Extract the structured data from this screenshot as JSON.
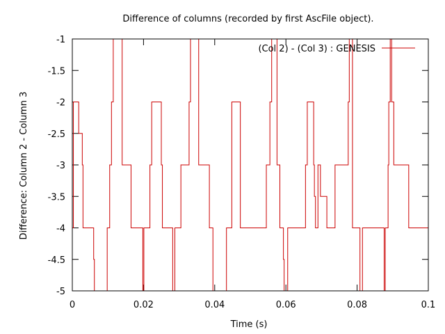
{
  "chart_data": {
    "type": "line",
    "title": "Difference of columns (recorded by first AscFile object).",
    "xlabel": "Time (s)",
    "ylabel": "Difference: Column 2 - Column 3",
    "xlim": [
      0,
      0.1
    ],
    "ylim": [
      -5,
      -1
    ],
    "x_ticks": [
      0,
      0.02,
      0.04,
      0.06,
      0.08,
      0.1
    ],
    "x_tick_labels": [
      "0",
      "0.02",
      "0.04",
      "0.06",
      "0.08",
      "0.1"
    ],
    "y_ticks": [
      -5,
      -4.5,
      -4,
      -3.5,
      -3,
      -2.5,
      -2,
      -1.5,
      -1
    ],
    "y_tick_labels": [
      "-5",
      "-4.5",
      "-4",
      "-3.5",
      "-3",
      "-2.5",
      "-2",
      "-1.5",
      "-1"
    ],
    "grid": false,
    "legend_position": "top-right",
    "series": [
      {
        "name": "(Col 2) - (Col 3) : GENESIS",
        "color": "#cc0000",
        "step": true,
        "x": [
          0,
          0.0003,
          0.0006,
          0.0018,
          0.0028,
          0.003,
          0.0035,
          0.006,
          0.0062,
          0.0065,
          0.0098,
          0.01,
          0.0102,
          0.0105,
          0.0107,
          0.011,
          0.0115,
          0.012,
          0.014,
          0.0142,
          0.0148,
          0.0165,
          0.017,
          0.0198,
          0.0201,
          0.0205,
          0.0218,
          0.0222,
          0.0223,
          0.025,
          0.0253,
          0.0258,
          0.0282,
          0.0288,
          0.0295,
          0.0303,
          0.0305,
          0.0325,
          0.0328,
          0.0332,
          0.0345,
          0.0355,
          0.0362,
          0.0385,
          0.039,
          0.0395,
          0.0403,
          0.0433,
          0.0437,
          0.0445,
          0.0448,
          0.046,
          0.0472,
          0.0475,
          0.0487,
          0.0545,
          0.0552,
          0.0555,
          0.056,
          0.0575,
          0.0583,
          0.0587,
          0.0593,
          0.0595,
          0.06,
          0.0605,
          0.0608,
          0.0655,
          0.066,
          0.0665,
          0.0678,
          0.068,
          0.0683,
          0.0685,
          0.069,
          0.0694,
          0.0697,
          0.0715,
          0.0718,
          0.0732,
          0.0738,
          0.0775,
          0.0778,
          0.0785,
          0.0787,
          0.0794,
          0.0797,
          0.0803,
          0.0806,
          0.0808,
          0.0815,
          0.0838,
          0.0876,
          0.0879,
          0.0882,
          0.0887,
          0.0889,
          0.0893,
          0.0897,
          0.0903,
          0.0915,
          0.0945,
          0.0948,
          0.0992,
          0.1
        ],
        "y": [
          -4,
          -2,
          -2,
          -2.5,
          -3,
          -4,
          -4,
          -4.5,
          -5,
          -5,
          -4,
          -4,
          -4,
          -3,
          -3,
          -2,
          -1,
          -1,
          -3,
          -3,
          -3,
          -4,
          -4,
          -5,
          -4,
          -4,
          -3,
          -3,
          -2,
          -3,
          -4,
          -4,
          -5,
          -4,
          -4,
          -4,
          -3,
          -3,
          -2,
          -1,
          -1,
          -3,
          -3,
          -4,
          -4,
          -5,
          -5,
          -4,
          -4,
          -4,
          -2,
          -2,
          -4,
          -4,
          -4,
          -3,
          -3,
          -2,
          -1,
          -3,
          -4,
          -4,
          -4.5,
          -5,
          -5,
          -4,
          -4,
          -3,
          -2,
          -2,
          -3,
          -3.5,
          -4,
          -4,
          -3,
          -3,
          -3.5,
          -4,
          -4,
          -4,
          -3,
          -2,
          -1,
          -1,
          -4,
          -4,
          -4,
          -4,
          -4,
          -5,
          -4,
          -4,
          -5,
          -4,
          -4,
          -3,
          -2,
          -1,
          -2,
          -3,
          -3,
          -4,
          -4,
          -4,
          -4
        ]
      }
    ]
  }
}
